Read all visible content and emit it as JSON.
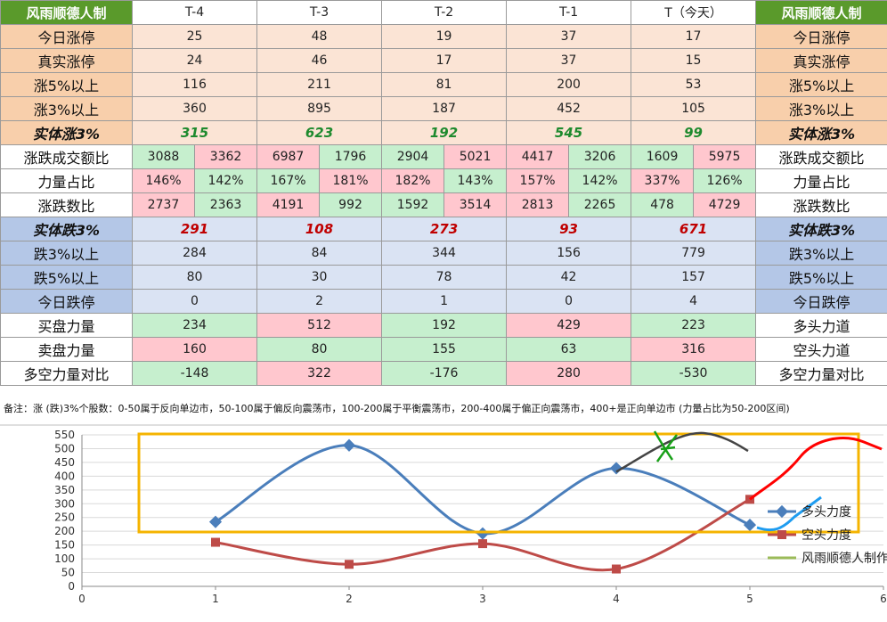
{
  "table": {
    "corner_label": "风雨顺德人制",
    "day_headers": [
      "T-4",
      "T-3",
      "T-2",
      "T-1",
      "T（今天）"
    ],
    "rows": [
      {
        "label": "今日涨停",
        "values": [
          "25",
          "48",
          "19",
          "37",
          "17"
        ]
      },
      {
        "label": "真实涨停",
        "values": [
          "24",
          "46",
          "17",
          "37",
          "15"
        ]
      },
      {
        "label": "涨5%以上",
        "values": [
          "116",
          "211",
          "81",
          "200",
          "53"
        ]
      },
      {
        "label": "涨3%以上",
        "values": [
          "360",
          "895",
          "187",
          "452",
          "105"
        ]
      },
      {
        "label": "实体涨3%",
        "values": [
          "315",
          "623",
          "192",
          "545",
          "99"
        ]
      },
      {
        "label": "涨跌成交额比",
        "pairs": [
          [
            "3088",
            "3362"
          ],
          [
            "6987",
            "1796"
          ],
          [
            "2904",
            "5021"
          ],
          [
            "4417",
            "3206"
          ],
          [
            "1609",
            "5975"
          ]
        ]
      },
      {
        "label": "力量占比",
        "pairs": [
          [
            "146%",
            "142%"
          ],
          [
            "167%",
            "181%"
          ],
          [
            "182%",
            "143%"
          ],
          [
            "157%",
            "142%"
          ],
          [
            "337%",
            "126%"
          ]
        ]
      },
      {
        "label": "涨跌数比",
        "pairs": [
          [
            "2737",
            "2363"
          ],
          [
            "4191",
            "992"
          ],
          [
            "1592",
            "3514"
          ],
          [
            "2813",
            "2265"
          ],
          [
            "478",
            "4729"
          ]
        ]
      },
      {
        "label": "实体跌3%",
        "values": [
          "291",
          "108",
          "273",
          "93",
          "671"
        ]
      },
      {
        "label": "跌3%以上",
        "values": [
          "284",
          "84",
          "344",
          "156",
          "779"
        ]
      },
      {
        "label": "跌5%以上",
        "values": [
          "80",
          "30",
          "78",
          "42",
          "157"
        ]
      },
      {
        "label": "今日跌停",
        "values": [
          "0",
          "2",
          "1",
          "0",
          "4"
        ]
      },
      {
        "label": "买盘力量",
        "right_label": "多头力道",
        "values": [
          "234",
          "512",
          "192",
          "429",
          "223"
        ]
      },
      {
        "label": "卖盘力量",
        "right_label": "空头力道",
        "values": [
          "160",
          "80",
          "155",
          "63",
          "316"
        ]
      },
      {
        "label": "多空力量对比",
        "right_label": "多空力量对比",
        "values": [
          "-148",
          "322",
          "-176",
          "280",
          "-530"
        ]
      }
    ]
  },
  "note": "备注：涨 (跌)3%个股数：0-50属于反向单边市，50-100属于偏反向震荡市，100-200属于平衡震荡市，200-400属于偏正向震荡市，400+是正向单边市 (力量占比为50-200区间)",
  "colors": {
    "header_green": "#5a9a2b",
    "up_fill": "#c6efce",
    "down_fill": "#ffc7ce",
    "series_bull": "#4a7ebb",
    "series_bear": "#be4b48",
    "series_brand": "#9bbb59",
    "highlight_box": "#f5b400",
    "annotation_red": "#ff0000",
    "annotation_cyan": "#1e9cf0",
    "annotation_green": "#18a018",
    "annotation_dark": "#444444"
  },
  "chart_data": {
    "type": "scatter",
    "x_ticks": [
      "0",
      "1",
      "2",
      "3",
      "4",
      "5",
      "6"
    ],
    "y_ticks": [
      "0",
      "50",
      "100",
      "150",
      "200",
      "250",
      "300",
      "350",
      "400",
      "450",
      "500",
      "550"
    ],
    "xlim": [
      0,
      6
    ],
    "ylim": [
      0,
      550
    ],
    "grid": true,
    "legend_position": "right",
    "series": [
      {
        "name": "多头力度",
        "x": [
          1,
          2,
          3,
          4,
          5
        ],
        "values": [
          234,
          512,
          192,
          429,
          223
        ]
      },
      {
        "name": "空头力度",
        "x": [
          1,
          2,
          3,
          4,
          5
        ],
        "values": [
          160,
          80,
          155,
          63,
          316
        ]
      },
      {
        "name": "风雨顺德人制作",
        "x": [],
        "values": []
      }
    ]
  }
}
